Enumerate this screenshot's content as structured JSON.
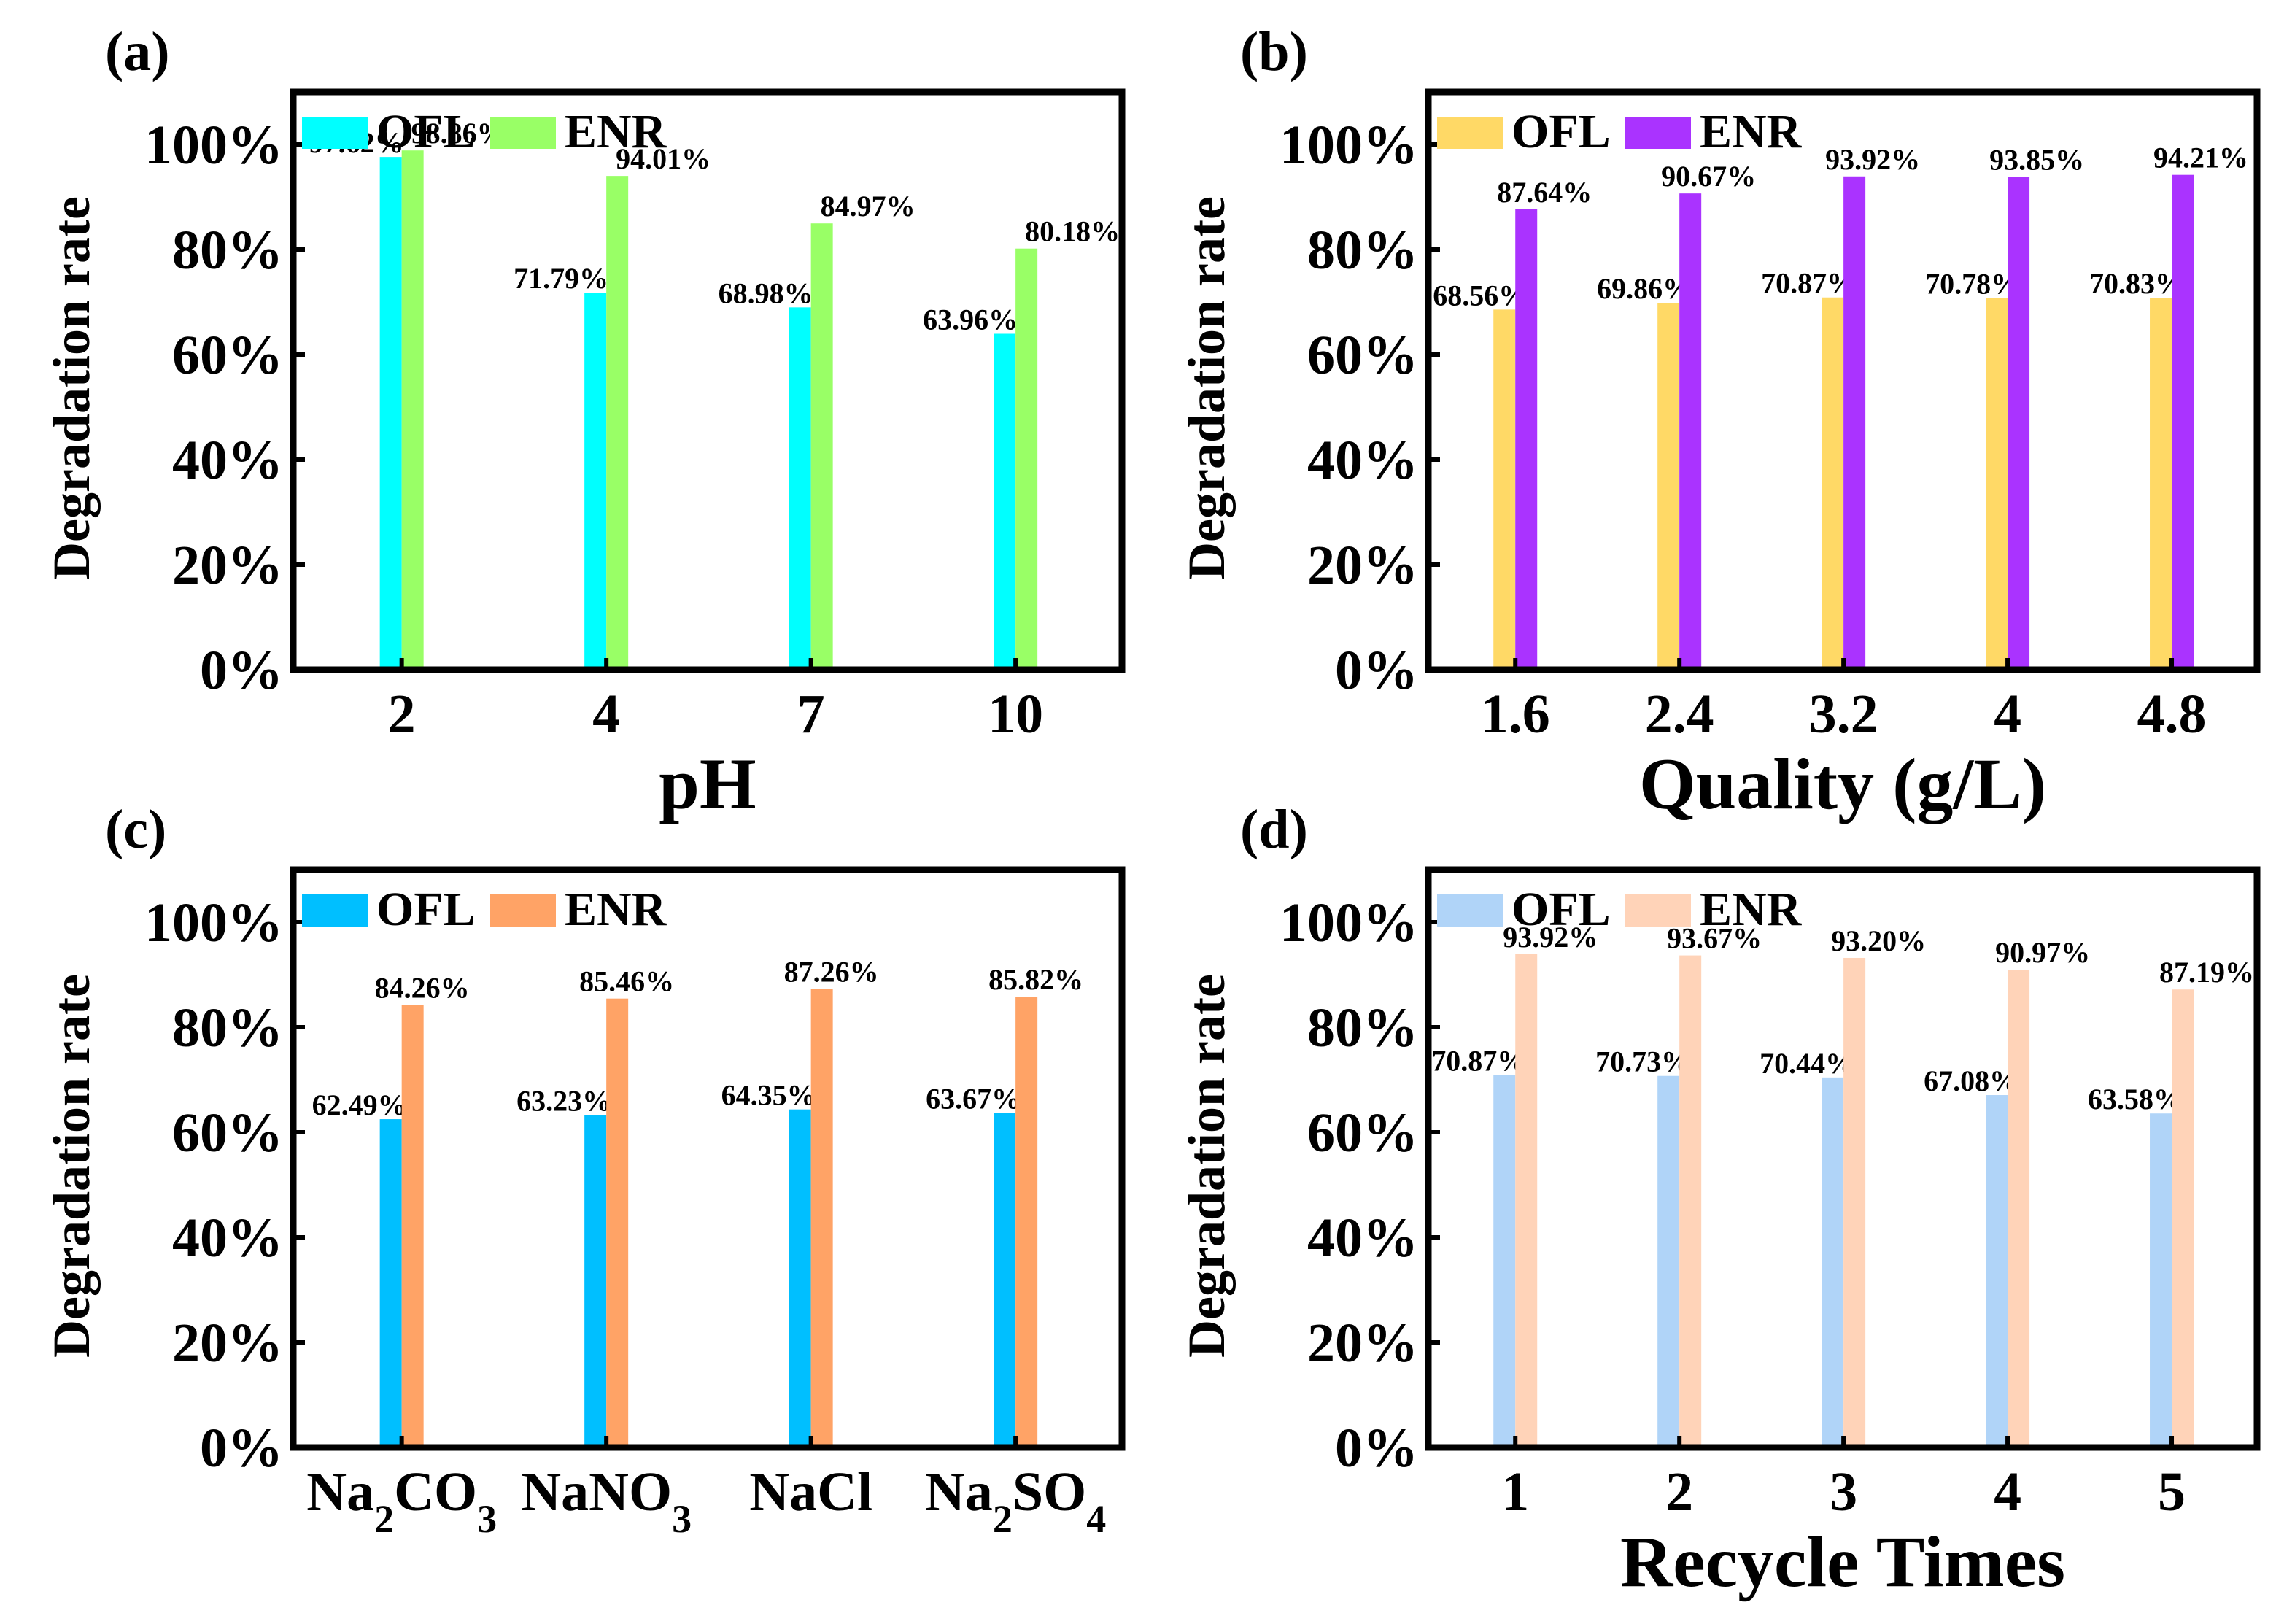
{
  "chart_data": [
    {
      "type": "bar",
      "panel_label": "(a)",
      "categories": [
        "2",
        "4",
        "7",
        "10"
      ],
      "series": [
        {
          "name": "OFL",
          "color": "#00FFFF",
          "values": [
            97.62,
            71.79,
            68.98,
            63.96
          ],
          "labels": [
            "97.62%",
            "71.79%",
            "68.98%",
            "63.96%"
          ]
        },
        {
          "name": "ENR",
          "color": "#99FF66",
          "values": [
            98.86,
            94.01,
            84.97,
            80.18
          ],
          "labels": [
            "98.86%",
            "94.01%",
            "84.97%",
            "80.18%"
          ]
        }
      ],
      "xlabel": "pH",
      "ylabel": "Degradation rate",
      "ylim": [
        0,
        100
      ],
      "yticks": [
        "0%",
        "20%",
        "40%",
        "60%",
        "80%",
        "100%"
      ],
      "legend": "top-left"
    },
    {
      "type": "bar",
      "panel_label": "(b)",
      "categories": [
        "1.6",
        "2.4",
        "3.2",
        "4",
        "4.8"
      ],
      "series": [
        {
          "name": "OFL",
          "color": "#FFD966",
          "values": [
            68.56,
            69.86,
            70.87,
            70.78,
            70.83
          ],
          "labels": [
            "68.56%",
            "69.86%",
            "70.87%",
            "70.78%",
            "70.83%"
          ]
        },
        {
          "name": "ENR",
          "color": "#AA33FF",
          "values": [
            87.64,
            90.67,
            93.92,
            93.85,
            94.21
          ],
          "labels": [
            "87.64%",
            "90.67%",
            "93.92%",
            "93.85%",
            "94.21%"
          ]
        }
      ],
      "xlabel": "Quality (g/L)",
      "ylabel": "Degradation rate",
      "ylim": [
        0,
        100
      ],
      "yticks": [
        "0%",
        "20%",
        "40%",
        "60%",
        "80%",
        "100%"
      ],
      "legend": "top-left"
    },
    {
      "type": "bar",
      "panel_label": "(c)",
      "categories": [
        [
          {
            "t": "Na"
          },
          {
            "t": "2",
            "sub": true
          },
          {
            "t": "CO"
          },
          {
            "t": "3",
            "sub": true
          }
        ],
        [
          {
            "t": "NaNO"
          },
          {
            "t": "3",
            "sub": true
          }
        ],
        [
          {
            "t": "NaCl"
          }
        ],
        [
          {
            "t": "Na"
          },
          {
            "t": "2",
            "sub": true
          },
          {
            "t": "SO"
          },
          {
            "t": "4",
            "sub": true
          }
        ]
      ],
      "series": [
        {
          "name": "OFL",
          "color": "#00BFFF",
          "values": [
            62.49,
            63.23,
            64.35,
            63.67
          ],
          "labels": [
            "62.49%",
            "63.23%",
            "64.35%",
            "63.67%"
          ]
        },
        {
          "name": "ENR",
          "color": "#FFA366",
          "values": [
            84.26,
            85.46,
            87.26,
            85.82
          ],
          "labels": [
            "84.26%",
            "85.46%",
            "87.26%",
            "85.82%"
          ]
        }
      ],
      "xlabel": "",
      "ylabel": "Degradation rate",
      "ylim": [
        0,
        100
      ],
      "yticks": [
        "0%",
        "20%",
        "40%",
        "60%",
        "80%",
        "100%"
      ],
      "legend": "top-left"
    },
    {
      "type": "bar",
      "panel_label": "(d)",
      "categories": [
        "1",
        "2",
        "3",
        "4",
        "5"
      ],
      "series": [
        {
          "name": "OFL",
          "color": "#B0D4F8",
          "values": [
            70.87,
            70.73,
            70.44,
            67.08,
            63.58
          ],
          "labels": [
            "70.87%",
            "70.73%",
            "70.44%",
            "67.08%",
            "63.58%"
          ]
        },
        {
          "name": "ENR",
          "color": "#FFD3B8",
          "values": [
            93.92,
            93.67,
            93.2,
            90.97,
            87.19
          ],
          "labels": [
            "93.92%",
            "93.67%",
            "93.20%",
            "90.97%",
            "87.19%"
          ]
        }
      ],
      "xlabel": "Recycle Times",
      "ylabel": "Degradation rate",
      "ylim": [
        0,
        100
      ],
      "yticks": [
        "0%",
        "20%",
        "40%",
        "60%",
        "80%",
        "100%"
      ],
      "legend": "top-left"
    }
  ]
}
